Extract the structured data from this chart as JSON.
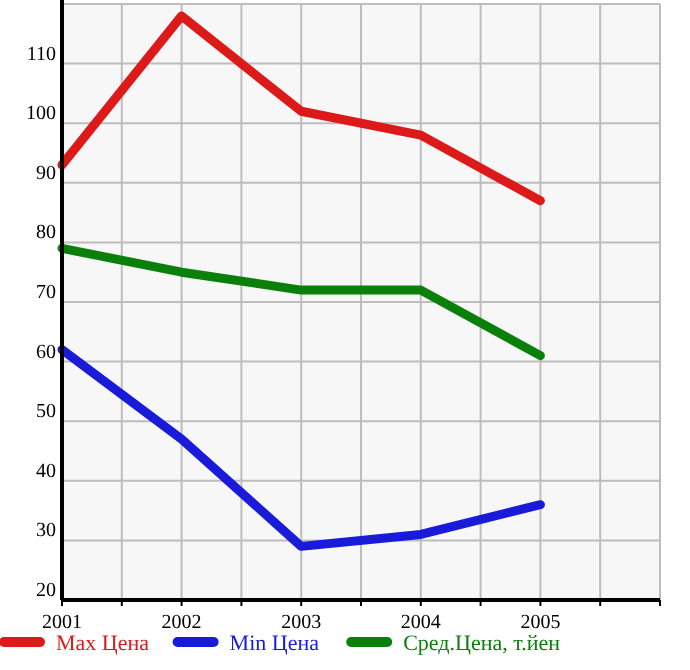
{
  "chart_data": {
    "type": "line",
    "x": [
      2001,
      2002,
      2003,
      2004,
      2005
    ],
    "series": [
      {
        "name": "Max Цена",
        "color": "#dd1a1a",
        "values": [
          93,
          118,
          102,
          98,
          87
        ]
      },
      {
        "name": "Min Цена",
        "color": "#1a1ad9",
        "values": [
          62,
          47,
          29,
          31,
          36
        ]
      },
      {
        "name": "Сред.Цена, т.йен",
        "color": "#0a800a",
        "values": [
          79,
          75,
          72,
          72,
          61
        ]
      }
    ],
    "xlim": [
      2001,
      2006
    ],
    "xticks": [
      2001,
      {
        "value": 2001.5,
        "label": null
      },
      2002,
      {
        "value": 2002.5,
        "label": null
      },
      2003,
      {
        "value": 2003.5,
        "label": null
      },
      2004,
      {
        "value": 2004.5,
        "label": null
      },
      2005,
      {
        "value": 2005.5,
        "label": null
      },
      {
        "value": 2006,
        "label": null
      }
    ],
    "ylim": [
      20,
      120
    ],
    "yticks": [
      20,
      30,
      40,
      50,
      60,
      70,
      80,
      90,
      100,
      110,
      {
        "value": 120,
        "label": null
      }
    ],
    "grid": true,
    "legend": "bottom",
    "marker": "none",
    "line_style": "solid"
  }
}
